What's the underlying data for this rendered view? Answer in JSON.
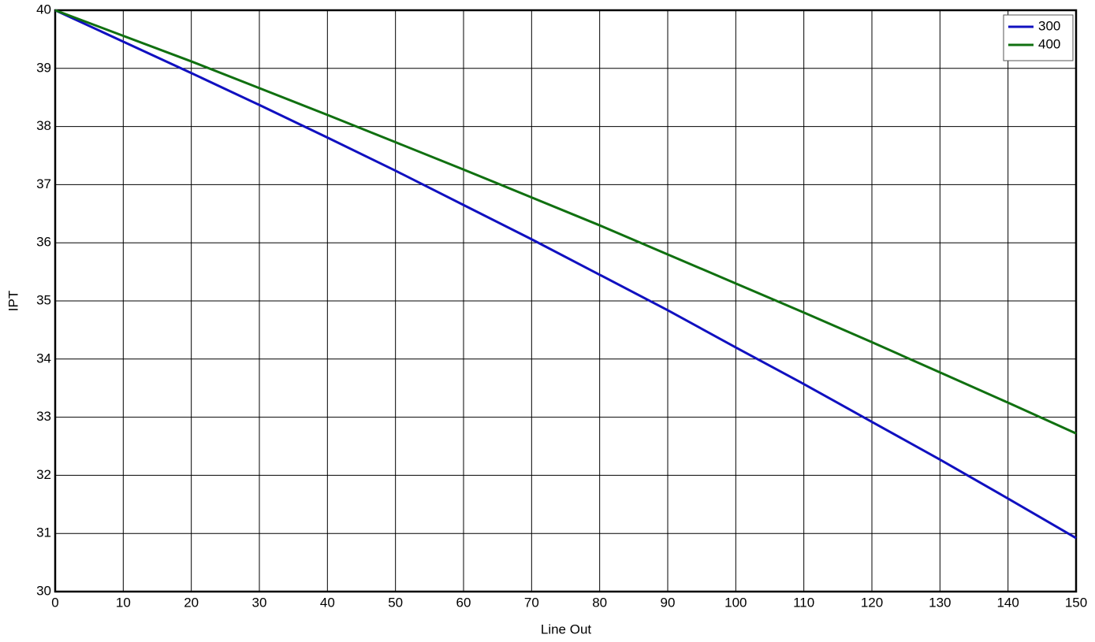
{
  "chart_data": {
    "type": "line",
    "x_label": "Line Out",
    "y_label": "IPT",
    "x": [
      0,
      10,
      20,
      30,
      40,
      50,
      60,
      70,
      80,
      90,
      100,
      110,
      120,
      130,
      140,
      150
    ],
    "series": [
      {
        "name": "300",
        "color": "#1010c0",
        "values": [
          40,
          39.46,
          38.92,
          38.37,
          37.81,
          37.24,
          36.65,
          36.06,
          35.45,
          34.84,
          34.2,
          33.57,
          32.92,
          32.27,
          31.6,
          30.92
        ]
      },
      {
        "name": "400",
        "color": "#107010",
        "values": [
          40,
          39.56,
          39.12,
          38.66,
          38.2,
          37.73,
          37.26,
          36.78,
          36.3,
          35.8,
          35.3,
          34.8,
          34.29,
          33.77,
          33.25,
          32.72
        ]
      }
    ],
    "xlim": [
      0,
      150
    ],
    "xticks": [
      0,
      10,
      20,
      30,
      40,
      50,
      60,
      70,
      80,
      90,
      100,
      110,
      120,
      130,
      140,
      150
    ],
    "ylim": [
      30,
      40
    ],
    "yticks": [
      30,
      31,
      32,
      33,
      34,
      35,
      36,
      37,
      38,
      39,
      40
    ],
    "grid": true,
    "legend": "top-right"
  }
}
